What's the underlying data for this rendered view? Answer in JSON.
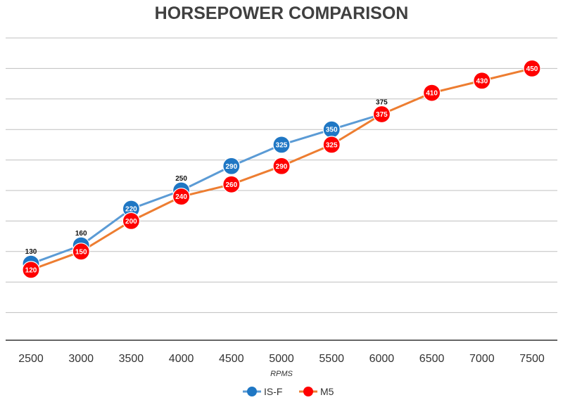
{
  "chart_data": {
    "type": "line",
    "title": "HORSEPOWER COMPARISON",
    "xlabel": "RPMS",
    "ylabel": "",
    "categories": [
      "2500",
      "3000",
      "3500",
      "4000",
      "4500",
      "5000",
      "5500",
      "6000",
      "6500",
      "7000",
      "7500"
    ],
    "ylim": [
      0,
      500
    ],
    "grid": true,
    "legend": "bottom",
    "series": [
      {
        "name": "IS-F",
        "color": "#1f77c4",
        "line_color": "#5b9bd5",
        "values": [
          130,
          160,
          220,
          250,
          290,
          325,
          350,
          375,
          null,
          null,
          null
        ],
        "labels_inside": [
          false,
          false,
          true,
          false,
          true,
          true,
          true,
          false,
          false,
          false,
          false
        ]
      },
      {
        "name": "M5",
        "color": "#ff0000",
        "line_color": "#ed7d31",
        "values": [
          120,
          150,
          200,
          240,
          260,
          290,
          325,
          375,
          410,
          430,
          450
        ],
        "labels_inside": [
          true,
          true,
          true,
          true,
          true,
          true,
          true,
          true,
          true,
          true,
          true
        ]
      }
    ]
  }
}
